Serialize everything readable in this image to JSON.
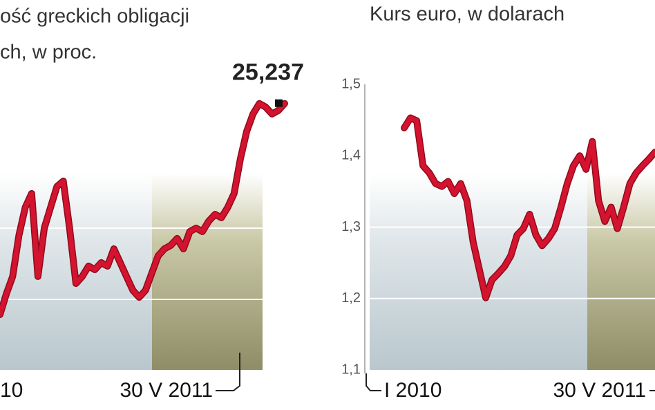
{
  "chart_data": [
    {
      "type": "line",
      "title_lines": [
        "ość greckich obligacji",
        "ch, w proc."
      ],
      "color": "#d4132f",
      "ylim": [
        0,
        30
      ],
      "values": [
        5.24,
        7.21,
        8.85,
        12.78,
        15.4,
        16.71,
        8.85,
        13.43,
        15.4,
        17.37,
        17.89,
        13.43,
        8.19,
        8.85,
        9.83,
        9.5,
        10.16,
        9.83,
        11.47,
        10.16,
        8.85,
        7.54,
        6.88,
        7.54,
        9.17,
        10.81,
        11.47,
        11.8,
        12.45,
        11.47,
        13.11,
        13.43,
        13.11,
        14.09,
        14.74,
        14.42,
        15.4,
        16.71,
        19.99,
        22.61,
        24.25,
        25.24,
        24.9,
        24.25,
        24.57,
        25.237
      ],
      "value_labels": [
        null,
        null,
        null,
        null,
        null,
        null,
        null,
        null,
        null,
        null,
        null,
        null,
        null,
        null,
        null,
        null,
        null,
        null,
        null,
        null,
        null,
        null,
        null,
        null,
        null,
        null,
        null,
        null,
        null,
        null,
        null,
        null,
        null,
        null,
        null,
        null,
        null,
        null,
        null,
        null,
        null,
        null,
        null,
        null,
        null,
        "25,237"
      ],
      "x_labels": [
        "10",
        "30 V 2011"
      ]
    },
    {
      "type": "line",
      "title_lines": [
        "Kurs euro, w dolarach"
      ],
      "color": "#d4132f",
      "ylim": [
        1.1,
        1.5
      ],
      "yticks": [
        {
          "value": 1.1,
          "label": "1,1"
        },
        {
          "value": 1.2,
          "label": "1,2"
        },
        {
          "value": 1.3,
          "label": "1,3"
        },
        {
          "value": 1.4,
          "label": "1,4"
        },
        {
          "value": 1.5,
          "label": "1,5"
        }
      ],
      "grid": true,
      "values": [
        1.439,
        1.453,
        1.449,
        1.386,
        1.376,
        1.361,
        1.357,
        1.364,
        1.347,
        1.361,
        1.337,
        1.279,
        1.24,
        1.201,
        1.226,
        1.235,
        1.245,
        1.26,
        1.289,
        1.298,
        1.318,
        1.289,
        1.274,
        1.284,
        1.298,
        1.328,
        1.361,
        1.386,
        1.4,
        1.381,
        1.42,
        1.337,
        1.308,
        1.328,
        1.298,
        1.328,
        1.361,
        1.376,
        1.386,
        1.395,
        1.405
      ],
      "x_labels": [
        "I 2010",
        "30 V 2011"
      ]
    }
  ]
}
